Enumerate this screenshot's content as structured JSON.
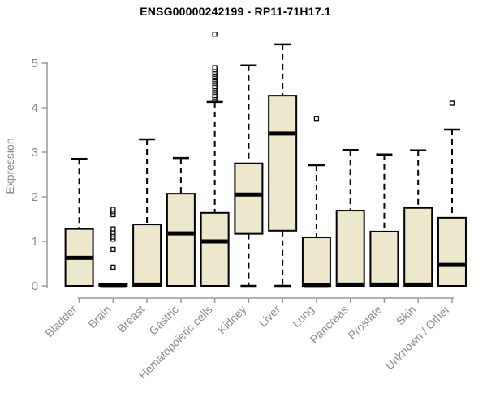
{
  "chart_data": {
    "type": "box",
    "title": "ENSG00000242199 - RP11-71H17.1",
    "xlabel": "",
    "ylabel": "Expression",
    "ylim": [
      0,
      5
    ],
    "yticks": [
      0,
      1,
      2,
      3,
      4,
      5
    ],
    "grid": false,
    "legend": "none",
    "categories": [
      "Bladder",
      "Brain",
      "Breast",
      "Gastric",
      "Hematopoietic cells",
      "Kidney",
      "Liver",
      "Lung",
      "Pancreas",
      "Prostate",
      "Skin",
      "Unknown / Other"
    ],
    "series": [
      {
        "category": "Bladder",
        "q1": 0,
        "median": 0.63,
        "q3": 1.28,
        "whisker_low": 0,
        "whisker_high": 2.85,
        "outliers": []
      },
      {
        "category": "Brain",
        "q1": 0,
        "median": 0.02,
        "q3": 0.04,
        "whisker_low": 0,
        "whisker_high": 0.04,
        "outliers": [
          0.42,
          0.82,
          1.05,
          1.1,
          1.15,
          1.2,
          1.28,
          1.6,
          1.64,
          1.68,
          1.72
        ]
      },
      {
        "category": "Breast",
        "q1": 0,
        "median": 0.03,
        "q3": 1.38,
        "whisker_low": 0,
        "whisker_high": 3.29,
        "outliers": []
      },
      {
        "category": "Gastric",
        "q1": 0,
        "median": 1.18,
        "q3": 2.07,
        "whisker_low": 0,
        "whisker_high": 2.87,
        "outliers": []
      },
      {
        "category": "Hematopoietic cells",
        "q1": 0,
        "median": 1.0,
        "q3": 1.64,
        "whisker_low": 0,
        "whisker_high": 4.13,
        "outliers": [
          4.19,
          4.23,
          4.27,
          4.31,
          4.35,
          4.39,
          4.43,
          4.47,
          4.51,
          4.55,
          4.59,
          4.63,
          4.67,
          4.71,
          4.75,
          4.8,
          4.85,
          4.9,
          5.65
        ]
      },
      {
        "category": "Kidney",
        "q1": 1.17,
        "median": 2.05,
        "q3": 2.75,
        "whisker_low": 0,
        "whisker_high": 4.95,
        "outliers": []
      },
      {
        "category": "Liver",
        "q1": 1.24,
        "median": 3.42,
        "q3": 4.27,
        "whisker_low": 0,
        "whisker_high": 5.42,
        "outliers": []
      },
      {
        "category": "Lung",
        "q1": 0,
        "median": 0.02,
        "q3": 1.09,
        "whisker_low": 0,
        "whisker_high": 2.71,
        "outliers": [
          3.76
        ]
      },
      {
        "category": "Pancreas",
        "q1": 0,
        "median": 0.03,
        "q3": 1.69,
        "whisker_low": 0,
        "whisker_high": 3.05,
        "outliers": []
      },
      {
        "category": "Prostate",
        "q1": 0,
        "median": 0.03,
        "q3": 1.22,
        "whisker_low": 0,
        "whisker_high": 2.95,
        "outliers": []
      },
      {
        "category": "Skin",
        "q1": 0,
        "median": 0.03,
        "q3": 1.75,
        "whisker_low": 0,
        "whisker_high": 3.04,
        "outliers": []
      },
      {
        "category": "Unknown / Other",
        "q1": 0,
        "median": 0.47,
        "q3": 1.53,
        "whisker_low": 0,
        "whisker_high": 3.51,
        "outliers": [
          4.1
        ]
      }
    ],
    "colors": {
      "box_fill": "#EDE7CC",
      "box_border": "#000000",
      "median": "#000000",
      "whisker": "#000000",
      "outlier_fill": "#FFFFFF",
      "outlier_border": "#000000",
      "axis_line": "#9A9A9A",
      "axis_text": "#8A8A8A",
      "title": "#000000",
      "background": "#FFFFFF"
    }
  }
}
